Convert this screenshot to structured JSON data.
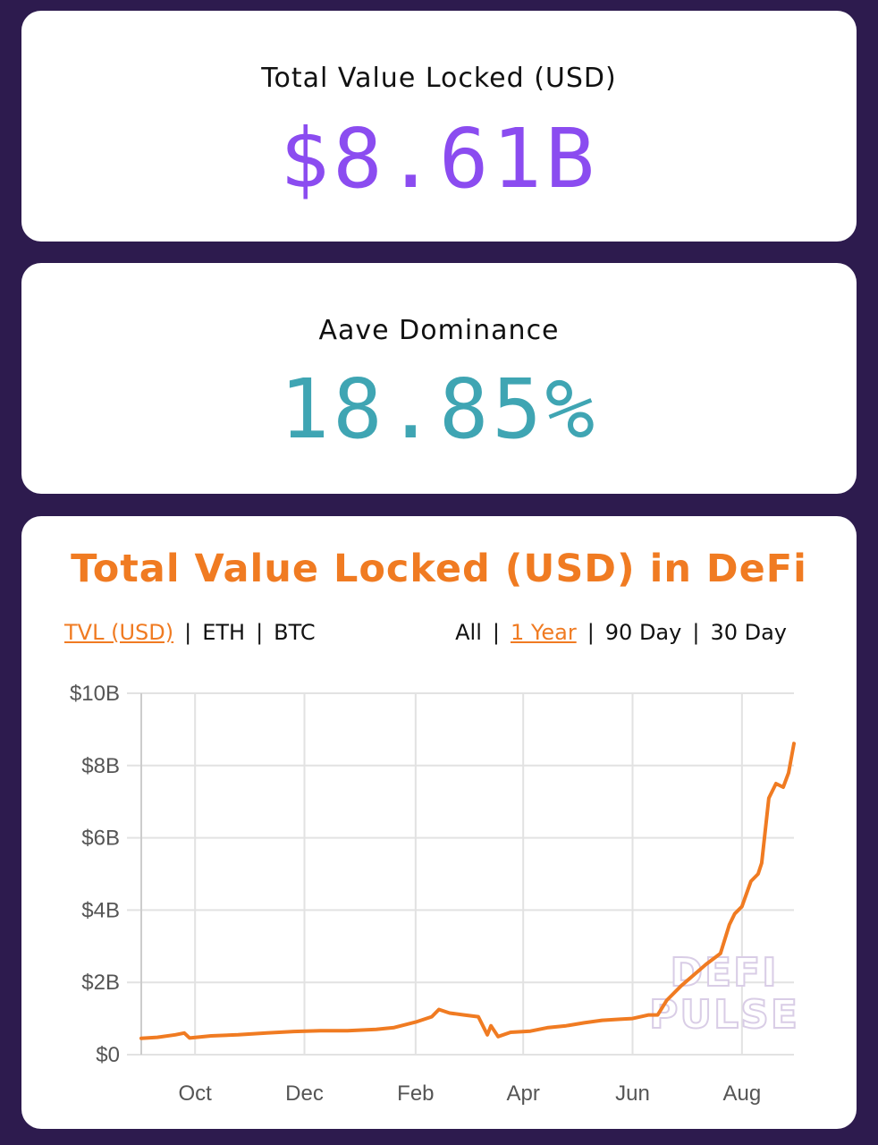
{
  "tvl_card": {
    "label": "Total Value Locked (USD)",
    "value": "$8.61B"
  },
  "dominance_card": {
    "label": "Aave Dominance",
    "value": "18.85%"
  },
  "chart_panel": {
    "title": "Total Value Locked (USD) in DeFi",
    "unit_toggles": [
      {
        "label": "TVL (USD)",
        "active": true
      },
      {
        "label": "ETH",
        "active": false
      },
      {
        "label": "BTC",
        "active": false
      }
    ],
    "range_toggles": [
      {
        "label": "All",
        "active": false
      },
      {
        "label": "1 Year",
        "active": true
      },
      {
        "label": "90 Day",
        "active": false
      },
      {
        "label": "30 Day",
        "active": false
      }
    ],
    "watermark": [
      "DEFI",
      "PULSE"
    ]
  },
  "colors": {
    "background": "#2d1b4e",
    "tvl_value": "#8b4cf0",
    "dominance_value": "#3fa5b3",
    "accent_orange": "#f07b22",
    "grid": "#e2e2e2"
  },
  "chart_data": {
    "type": "line",
    "title": "Total Value Locked (USD) in DeFi",
    "xlabel": "",
    "ylabel": "",
    "ylim": [
      0,
      10
    ],
    "y_ticks": [
      {
        "value": 0,
        "label": "$0"
      },
      {
        "value": 2,
        "label": "$2B"
      },
      {
        "value": 4,
        "label": "$4B"
      },
      {
        "value": 6,
        "label": "$6B"
      },
      {
        "value": 8,
        "label": "$8B"
      },
      {
        "value": 10,
        "label": "$10B"
      }
    ],
    "x_ticks": [
      {
        "date": "2019-10-01",
        "label": "Oct"
      },
      {
        "date": "2019-12-01",
        "label": "Dec"
      },
      {
        "date": "2020-02-01",
        "label": "Feb"
      },
      {
        "date": "2020-04-01",
        "label": "Apr"
      },
      {
        "date": "2020-06-01",
        "label": "Jun"
      },
      {
        "date": "2020-08-01",
        "label": "Aug"
      }
    ],
    "xlim": [
      "2019-09-01",
      "2020-08-30"
    ],
    "grid": true,
    "series": [
      {
        "color": "#f07b22",
        "points": [
          [
            "2019-09-01",
            0.45
          ],
          [
            "2019-09-10",
            0.48
          ],
          [
            "2019-09-20",
            0.55
          ],
          [
            "2019-09-25",
            0.6
          ],
          [
            "2019-09-28",
            0.46
          ],
          [
            "2019-10-10",
            0.52
          ],
          [
            "2019-10-25",
            0.55
          ],
          [
            "2019-11-10",
            0.6
          ],
          [
            "2019-11-25",
            0.64
          ],
          [
            "2019-12-10",
            0.66
          ],
          [
            "2019-12-25",
            0.66
          ],
          [
            "2020-01-10",
            0.7
          ],
          [
            "2020-01-20",
            0.75
          ],
          [
            "2020-02-01",
            0.9
          ],
          [
            "2020-02-10",
            1.05
          ],
          [
            "2020-02-14",
            1.25
          ],
          [
            "2020-02-20",
            1.15
          ],
          [
            "2020-02-28",
            1.1
          ],
          [
            "2020-03-07",
            1.05
          ],
          [
            "2020-03-12",
            0.55
          ],
          [
            "2020-03-14",
            0.8
          ],
          [
            "2020-03-18",
            0.5
          ],
          [
            "2020-03-25",
            0.62
          ],
          [
            "2020-04-05",
            0.65
          ],
          [
            "2020-04-15",
            0.75
          ],
          [
            "2020-04-25",
            0.8
          ],
          [
            "2020-05-05",
            0.88
          ],
          [
            "2020-05-15",
            0.95
          ],
          [
            "2020-05-25",
            0.98
          ],
          [
            "2020-06-01",
            1.0
          ],
          [
            "2020-06-10",
            1.1
          ],
          [
            "2020-06-15",
            1.1
          ],
          [
            "2020-06-20",
            1.5
          ],
          [
            "2020-06-28",
            1.9
          ],
          [
            "2020-07-05",
            2.2
          ],
          [
            "2020-07-12",
            2.5
          ],
          [
            "2020-07-20",
            2.8
          ],
          [
            "2020-07-25",
            3.6
          ],
          [
            "2020-07-28",
            3.9
          ],
          [
            "2020-08-01",
            4.1
          ],
          [
            "2020-08-06",
            4.8
          ],
          [
            "2020-08-10",
            5.0
          ],
          [
            "2020-08-12",
            5.3
          ],
          [
            "2020-08-14",
            6.2
          ],
          [
            "2020-08-16",
            7.1
          ],
          [
            "2020-08-20",
            7.5
          ],
          [
            "2020-08-24",
            7.4
          ],
          [
            "2020-08-27",
            7.8
          ],
          [
            "2020-08-30",
            8.61
          ]
        ]
      }
    ]
  }
}
